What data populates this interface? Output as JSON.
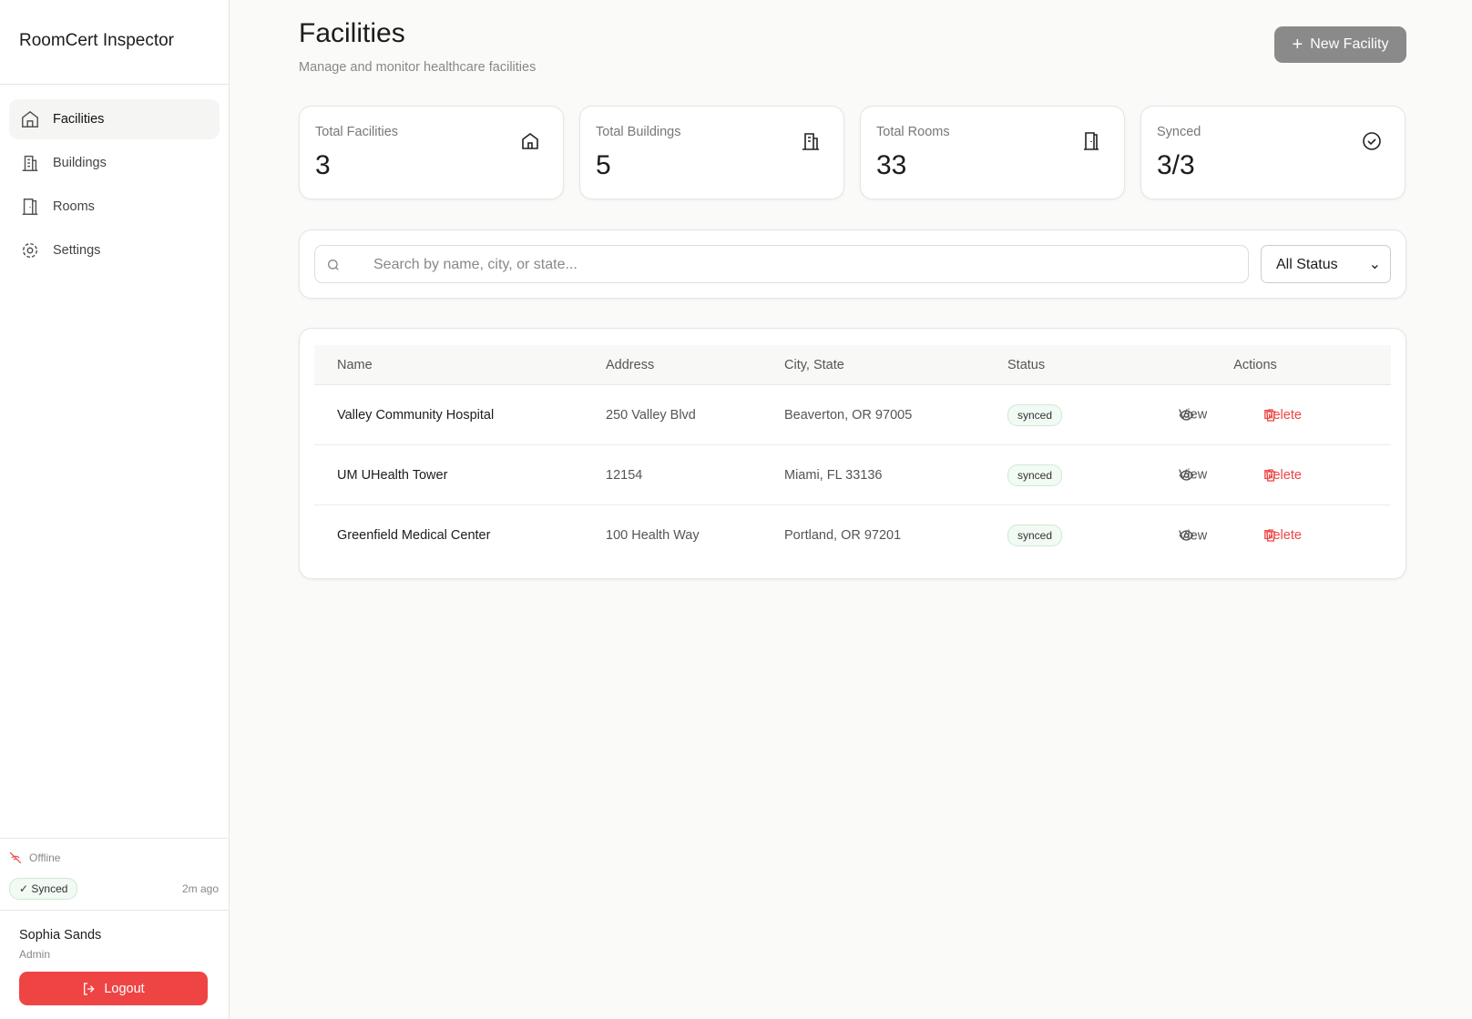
{
  "sidebar": {
    "brand": "RoomCert Inspector",
    "nav": [
      "Facilities",
      "Buildings",
      "Rooms",
      "Settings"
    ],
    "connection": "Offline",
    "sync_badge": "Synced",
    "last_sync": "2m ago"
  },
  "user": {
    "name": "Sophia Sands",
    "role": "Admin",
    "logout": "Logout"
  },
  "header": {
    "title": "Facilities",
    "subtitle": "Manage and monitor healthcare facilities",
    "new_button": "New Facility"
  },
  "stats": [
    {
      "label": "Total Facilities",
      "value": 3
    },
    {
      "label": "Total Buildings",
      "value": 5
    },
    {
      "label": "Total Rooms",
      "value": 33
    },
    {
      "label": "Synced",
      "value": "3/3"
    }
  ],
  "search": {
    "placeholder": "Search by name, city, or state...",
    "filter": "All Status"
  },
  "table": {
    "columns": [
      "Name",
      "Address",
      "City, State",
      "Status",
      "Actions"
    ],
    "rows": [
      [
        "Valley Community Hospital",
        "250 Valley Blvd",
        "Beaverton, OR 97005",
        "synced"
      ],
      [
        "UM UHealth Tower",
        "12154",
        "Miami, FL 33136",
        "synced"
      ],
      [
        "Greenfield Medical Center",
        "100 Health Way",
        "Portland, OR 97201",
        "synced"
      ]
    ],
    "view": "View",
    "delete": "Delete"
  }
}
